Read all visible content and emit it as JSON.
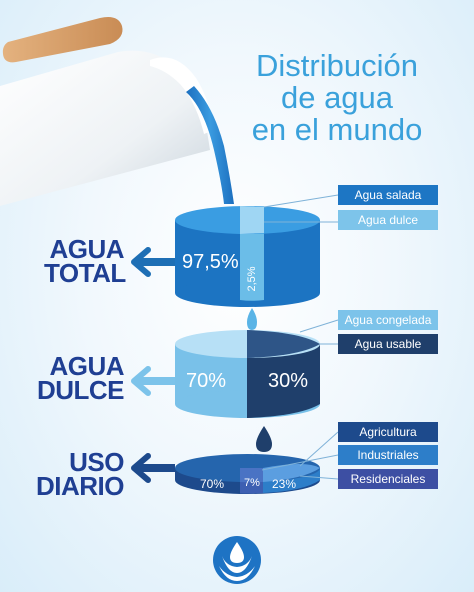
{
  "title": {
    "line1": "Distribución",
    "line2": "de agua",
    "line3": "en el mundo"
  },
  "sections": [
    {
      "label_line1": "AGUA",
      "label_line2": "TOTAL",
      "segments": [
        {
          "label": "97,5%",
          "value": 97.5
        },
        {
          "label": "2,5%",
          "value": 2.5
        }
      ],
      "legend": [
        "Agua salada",
        "Agua dulce"
      ]
    },
    {
      "label_line1": "AGUA",
      "label_line2": "DULCE",
      "segments": [
        {
          "label": "70%",
          "value": 70
        },
        {
          "label": "30%",
          "value": 30
        }
      ],
      "legend": [
        "Agua congelada",
        "Agua usable"
      ]
    },
    {
      "label_line1": "USO",
      "label_line2": "DIARIO",
      "segments": [
        {
          "label": "70%",
          "value": 70
        },
        {
          "label": "7%",
          "value": 7
        },
        {
          "label": "23%",
          "value": 23
        }
      ],
      "legend": [
        "Agricultura",
        "Industriales",
        "Residenciales"
      ]
    }
  ],
  "colors": {
    "title": "#3aa1db",
    "label": "#1f3f93",
    "arrow": "#1e6fb5",
    "agua_salada": "#1d76c4",
    "agua_dulce": "#7dc4ea",
    "agua_congelada": "#7cc3ea",
    "agua_usable": "#1f3f6b",
    "agricultura": "#1d4a8c",
    "industriales": "#2d7ec9",
    "residenciales": "#3d4fa3"
  },
  "logo": "water-drop-logo"
}
